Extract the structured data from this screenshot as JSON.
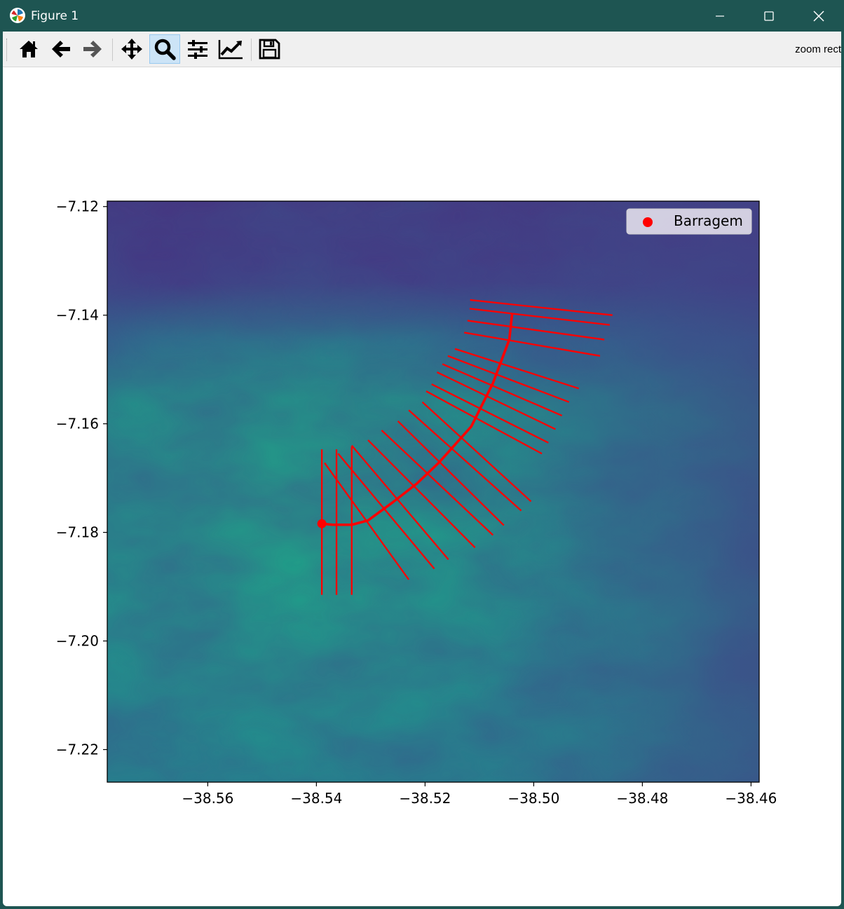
{
  "window": {
    "title": "Figure 1"
  },
  "toolbar": {
    "buttons": [
      {
        "name": "home",
        "icon": "home-icon"
      },
      {
        "name": "back",
        "icon": "arrow-left-icon"
      },
      {
        "name": "forward",
        "icon": "arrow-right-icon"
      },
      {
        "name": "pan",
        "icon": "move-icon"
      },
      {
        "name": "zoom",
        "icon": "magnifier-icon",
        "active": true
      },
      {
        "name": "subplots",
        "icon": "sliders-icon"
      },
      {
        "name": "customize",
        "icon": "chart-line-icon"
      },
      {
        "name": "save",
        "icon": "floppy-icon"
      }
    ],
    "mode_text": "zoom rect"
  },
  "chart_data": {
    "type": "line",
    "title": "",
    "xlabel": "",
    "ylabel": "",
    "xlim": [
      -38.5785,
      -38.4585
    ],
    "ylim": [
      -7.226,
      -7.119
    ],
    "xticks": [
      -38.56,
      -38.54,
      -38.52,
      -38.5,
      -38.48,
      -38.46
    ],
    "xtick_labels": [
      "−38.56",
      "−38.54",
      "−38.52",
      "−38.50",
      "−38.48",
      "−38.46"
    ],
    "yticks": [
      -7.12,
      -7.14,
      -7.16,
      -7.18,
      -7.2,
      -7.22
    ],
    "ytick_labels": [
      "−7.12",
      "−7.14",
      "−7.16",
      "−7.18",
      "−7.20",
      "−7.22"
    ],
    "background": "elevation raster (viridis colormap)",
    "colors": {
      "raster_low": "#46317e",
      "raster_high": "#21a685",
      "lines": "#ff0000",
      "dam": "#ff0000"
    },
    "legend": {
      "placement": "upper right",
      "entries": [
        {
          "label": "Barragem",
          "marker": "circle",
          "color": "#ff0000"
        }
      ]
    },
    "dam_point": {
      "x": -38.539,
      "y": -7.1784
    },
    "river_path": [
      [
        -38.539,
        -7.1784
      ],
      [
        -38.537,
        -7.1786
      ],
      [
        -38.5335,
        -7.1786
      ],
      [
        -38.5305,
        -7.1778
      ],
      [
        -38.526,
        -7.1745
      ],
      [
        -38.5215,
        -7.171
      ],
      [
        -38.5175,
        -7.1672
      ],
      [
        -38.514,
        -7.1633
      ],
      [
        -38.5115,
        -7.1605
      ],
      [
        -38.5095,
        -7.1565
      ],
      [
        -38.5075,
        -7.1525
      ],
      [
        -38.506,
        -7.1485
      ],
      [
        -38.5045,
        -7.1445
      ],
      [
        -38.504,
        -7.14
      ]
    ],
    "cross_sections": [
      [
        [
          -38.539,
          -7.1647
        ],
        [
          -38.539,
          -7.1915
        ]
      ],
      [
        [
          -38.5363,
          -7.1647
        ],
        [
          -38.5363,
          -7.1915
        ]
      ],
      [
        [
          -38.5335,
          -7.1642
        ],
        [
          -38.5335,
          -7.1915
        ]
      ],
      [
        [
          -38.5385,
          -7.1672
        ],
        [
          -38.523,
          -7.1887
        ]
      ],
      [
        [
          -38.536,
          -7.1655
        ],
        [
          -38.5183,
          -7.1867
        ]
      ],
      [
        [
          -38.5335,
          -7.164
        ],
        [
          -38.5157,
          -7.185
        ]
      ],
      [
        [
          -38.5305,
          -7.163
        ],
        [
          -38.5108,
          -7.1828
        ]
      ],
      [
        [
          -38.528,
          -7.1612
        ],
        [
          -38.5075,
          -7.1805
        ]
      ],
      [
        [
          -38.525,
          -7.1595
        ],
        [
          -38.5055,
          -7.1787
        ]
      ],
      [
        [
          -38.523,
          -7.1575
        ],
        [
          -38.5023,
          -7.176
        ]
      ],
      [
        [
          -38.5205,
          -7.156
        ],
        [
          -38.5005,
          -7.1743
        ]
      ],
      [
        [
          -38.5198,
          -7.154
        ],
        [
          -38.4985,
          -7.1655
        ]
      ],
      [
        [
          -38.5188,
          -7.1527
        ],
        [
          -38.4973,
          -7.1635
        ]
      ],
      [
        [
          -38.5178,
          -7.1505
        ],
        [
          -38.496,
          -7.161
        ]
      ],
      [
        [
          -38.5168,
          -7.149
        ],
        [
          -38.4948,
          -7.1585
        ]
      ],
      [
        [
          -38.5158,
          -7.1475
        ],
        [
          -38.4935,
          -7.156
        ]
      ],
      [
        [
          -38.5145,
          -7.1462
        ],
        [
          -38.4917,
          -7.1535
        ]
      ],
      [
        [
          -38.5128,
          -7.1432
        ],
        [
          -38.4878,
          -7.1475
        ]
      ],
      [
        [
          -38.5122,
          -7.141
        ],
        [
          -38.487,
          -7.1445
        ]
      ],
      [
        [
          -38.5118,
          -7.1388
        ],
        [
          -38.486,
          -7.1418
        ]
      ],
      [
        [
          -38.5117,
          -7.1372
        ],
        [
          -38.4855,
          -7.14
        ]
      ]
    ]
  }
}
